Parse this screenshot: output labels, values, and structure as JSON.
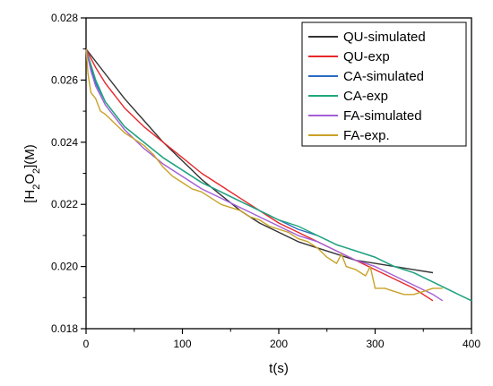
{
  "chart_data": {
    "type": "line",
    "title": "",
    "xlabel": "t(s)",
    "ylabel": {
      "prefix": "[H",
      "sub1": "2",
      "mid": "O",
      "sub2": "2",
      "suffix": "](M)"
    },
    "xlim": [
      0,
      400
    ],
    "ylim": [
      0.018,
      0.028
    ],
    "xticks": [
      "0",
      "100",
      "200",
      "300",
      "400"
    ],
    "yticks": [
      "0.018",
      "0.020",
      "0.022",
      "0.024",
      "0.026",
      "0.028"
    ],
    "grid": false,
    "legend_position": "top-right",
    "series": [
      {
        "name": "QU-simulated",
        "color": "#333333",
        "x": [
          0,
          20,
          40,
          60,
          80,
          100,
          120,
          140,
          160,
          180,
          200,
          220,
          240,
          260,
          280,
          300,
          320,
          340,
          360
        ],
        "y": [
          0.027,
          0.0262,
          0.0254,
          0.0247,
          0.024,
          0.0234,
          0.0228,
          0.0223,
          0.0218,
          0.0214,
          0.0211,
          0.0208,
          0.0206,
          0.0204,
          0.0202,
          0.0201,
          0.02,
          0.0199,
          0.0198
        ]
      },
      {
        "name": "QU-exp",
        "color": "#e8282b",
        "x": [
          0,
          10,
          20,
          40,
          60,
          80,
          100,
          120,
          140,
          160,
          180,
          200,
          220,
          240,
          260,
          280,
          300,
          320,
          340,
          360
        ],
        "y": [
          0.027,
          0.0264,
          0.0259,
          0.0251,
          0.0245,
          0.024,
          0.0235,
          0.023,
          0.0226,
          0.0222,
          0.0218,
          0.0214,
          0.0211,
          0.0208,
          0.0205,
          0.0202,
          0.0199,
          0.0196,
          0.0193,
          0.0189
        ]
      },
      {
        "name": "CA-simulated",
        "color": "#2b6cc4",
        "x": [
          0,
          5,
          10,
          20,
          40,
          60,
          80,
          100,
          120,
          140,
          160,
          180,
          200,
          220,
          240,
          260,
          280,
          300,
          320,
          340,
          360,
          380,
          400
        ],
        "y": [
          0.027,
          0.0264,
          0.0259,
          0.0253,
          0.0245,
          0.024,
          0.0235,
          0.0231,
          0.0227,
          0.0224,
          0.0221,
          0.0218,
          0.0215,
          0.0212,
          0.021,
          0.0207,
          0.0205,
          0.0203,
          0.02,
          0.0198,
          0.0195,
          0.0192,
          0.0189
        ]
      },
      {
        "name": "CA-exp",
        "color": "#1fa87a",
        "x": [
          0,
          5,
          10,
          20,
          40,
          60,
          80,
          100,
          120,
          140,
          160,
          180,
          200,
          220,
          240,
          260,
          280,
          300,
          320,
          340,
          360,
          380,
          400
        ],
        "y": [
          0.027,
          0.0265,
          0.026,
          0.0253,
          0.0245,
          0.024,
          0.0235,
          0.0231,
          0.0227,
          0.0224,
          0.0221,
          0.0218,
          0.0215,
          0.0213,
          0.021,
          0.0207,
          0.0205,
          0.0203,
          0.02,
          0.0198,
          0.0195,
          0.0192,
          0.0189
        ]
      },
      {
        "name": "FA-simulated",
        "color": "#a35fd6",
        "x": [
          0,
          5,
          10,
          20,
          40,
          60,
          80,
          100,
          120,
          140,
          160,
          180,
          200,
          220,
          240,
          260,
          280,
          300,
          320,
          340,
          360,
          370
        ],
        "y": [
          0.027,
          0.0263,
          0.0258,
          0.0252,
          0.0244,
          0.0238,
          0.0233,
          0.0229,
          0.0225,
          0.0222,
          0.0219,
          0.0216,
          0.0213,
          0.021,
          0.0208,
          0.0205,
          0.0202,
          0.02,
          0.0197,
          0.0194,
          0.0191,
          0.0189
        ]
      },
      {
        "name": "FA-exp.",
        "color": "#c9a227",
        "x": [
          0,
          2,
          5,
          10,
          15,
          20,
          30,
          40,
          50,
          60,
          70,
          80,
          90,
          100,
          110,
          120,
          130,
          140,
          150,
          160,
          170,
          180,
          190,
          200,
          210,
          220,
          230,
          240,
          250,
          260,
          265,
          270,
          280,
          290,
          295,
          300,
          310,
          320,
          330,
          340,
          350,
          360,
          370
        ],
        "y": [
          0.027,
          0.0262,
          0.0256,
          0.0254,
          0.025,
          0.0249,
          0.0246,
          0.0243,
          0.0241,
          0.0239,
          0.0236,
          0.0232,
          0.0229,
          0.0227,
          0.0225,
          0.0224,
          0.0222,
          0.022,
          0.0219,
          0.0218,
          0.0216,
          0.0215,
          0.0213,
          0.0212,
          0.0211,
          0.0209,
          0.0208,
          0.0206,
          0.0203,
          0.0201,
          0.0204,
          0.02,
          0.0199,
          0.0197,
          0.02,
          0.0193,
          0.0193,
          0.0192,
          0.0191,
          0.0191,
          0.0192,
          0.0193,
          0.0193
        ]
      }
    ]
  }
}
